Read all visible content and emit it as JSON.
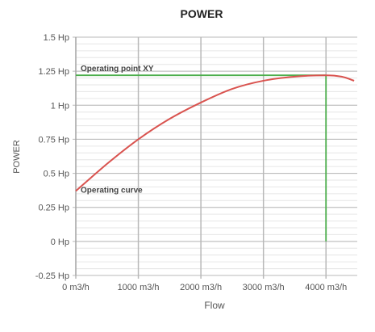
{
  "chart_data": {
    "type": "line",
    "title": "POWER",
    "xlabel": "Flow",
    "ylabel": "POWER",
    "xlim": [
      0,
      4500
    ],
    "ylim": [
      -0.25,
      1.5
    ],
    "x_ticks": [
      0,
      1000,
      2000,
      3000,
      4000
    ],
    "x_tick_labels": [
      "0 m3/h",
      "1000 m3/h",
      "2000 m3/h",
      "3000 m3/h",
      "4000 m3/h"
    ],
    "y_ticks": [
      -0.25,
      0,
      0.25,
      0.5,
      0.75,
      1,
      1.25,
      1.5
    ],
    "y_tick_labels": [
      "-0.25 Hp",
      "0 Hp",
      "0.25 Hp",
      "0.5 Hp",
      "0.75 Hp",
      "1 Hp",
      "1.25 Hp",
      "1.5 Hp"
    ],
    "grid": true,
    "series": [
      {
        "name": "Operating curve",
        "color": "#d9534f",
        "x": [
          0,
          500,
          1000,
          1500,
          2000,
          2500,
          3000,
          3500,
          4000,
          4250,
          4450
        ],
        "y": [
          0.37,
          0.57,
          0.75,
          0.9,
          1.02,
          1.12,
          1.18,
          1.21,
          1.22,
          1.21,
          1.18
        ]
      }
    ],
    "operating_point": {
      "name": "Operating point XY",
      "color": "#4cae4c",
      "x": 4000,
      "y": 1.22
    }
  }
}
